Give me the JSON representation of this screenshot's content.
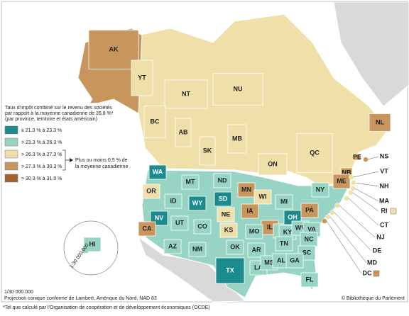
{
  "legend": {
    "title": [
      "Taux d'impôt combiné sur le revenu des sociétés",
      "par rapport à la moyenne canadienne de 26,8 %*",
      "(par province, territoire et états américain)"
    ],
    "items": [
      {
        "label": "≥ 21.0 % à 23.3 %",
        "color": "#1b8b8d"
      },
      {
        "label": "> 23.3 % à 26.3 %",
        "color": "#97d4c3"
      },
      {
        "label": "> 26.3 % à 27.3 %",
        "color": "#efdfa9"
      },
      {
        "label": "> 27.3 % à 30.3 %",
        "color": "#c8955d"
      },
      {
        "label": "> 30.3 % à 31.0 %",
        "color": "#a5602b"
      }
    ],
    "note": [
      "Plus ou moins 0,5 % de",
      "la moyenne canadienne"
    ]
  },
  "regions": [
    {
      "label": "AK",
      "color": "#c8955d"
    },
    {
      "label": "YT",
      "color": "#efdfa9"
    },
    {
      "label": "NT",
      "color": "#efdfa9"
    },
    {
      "label": "NU",
      "color": "#efdfa9"
    },
    {
      "label": "BC",
      "color": "#efdfa9"
    },
    {
      "label": "AB",
      "color": "#efdfa9"
    },
    {
      "label": "SK",
      "color": "#efdfa9"
    },
    {
      "label": "MB",
      "color": "#efdfa9"
    },
    {
      "label": "ON",
      "color": "#efdfa9"
    },
    {
      "label": "QC",
      "color": "#efdfa9"
    },
    {
      "label": "NL",
      "color": "#c8955d"
    },
    {
      "label": "PE",
      "color": "#c8955d"
    },
    {
      "label": "NB",
      "color": "#c8955d"
    },
    {
      "label": "WA",
      "color": "#1b8b8d"
    },
    {
      "label": "OR",
      "color": "#efdfa9"
    },
    {
      "label": "MT",
      "color": "#97d4c3"
    },
    {
      "label": "ND",
      "color": "#97d4c3"
    },
    {
      "label": "MN",
      "color": "#c8955d"
    },
    {
      "label": "WI",
      "color": "#efdfa9"
    },
    {
      "label": "MI",
      "color": "#97d4c3"
    },
    {
      "label": "NY",
      "color": "#97d4c3"
    },
    {
      "label": "ME",
      "color": "#c8955d"
    },
    {
      "label": "ID",
      "color": "#97d4c3"
    },
    {
      "label": "WY",
      "color": "#1b8b8d"
    },
    {
      "label": "SD",
      "color": "#1b8b8d"
    },
    {
      "label": "NV",
      "color": "#1b8b8d"
    },
    {
      "label": "UT",
      "color": "#97d4c3"
    },
    {
      "label": "CO",
      "color": "#97d4c3"
    },
    {
      "label": "NE",
      "color": "#efdfa9"
    },
    {
      "label": "IA",
      "color": "#c8955d"
    },
    {
      "label": "IL",
      "color": "#c8955d"
    },
    {
      "label": "IN",
      "color": "#97d4c3"
    },
    {
      "label": "OH",
      "color": "#1b8b8d"
    },
    {
      "label": "PA",
      "color": "#c8955d"
    },
    {
      "label": "CA",
      "color": "#c8955d"
    },
    {
      "label": "KS",
      "color": "#efdfa9"
    },
    {
      "label": "MO",
      "color": "#97d4c3"
    },
    {
      "label": "KY",
      "color": "#97d4c3"
    },
    {
      "label": "WV",
      "color": "#97d4c3"
    },
    {
      "label": "VA",
      "color": "#97d4c3"
    },
    {
      "label": "AZ",
      "color": "#97d4c3"
    },
    {
      "label": "NM",
      "color": "#97d4c3"
    },
    {
      "label": "OK",
      "color": "#97d4c3"
    },
    {
      "label": "AR",
      "color": "#97d4c3"
    },
    {
      "label": "TN",
      "color": "#97d4c3"
    },
    {
      "label": "NC",
      "color": "#97d4c3"
    },
    {
      "label": "SC",
      "color": "#97d4c3"
    },
    {
      "label": "TX",
      "color": "#1b8b8d"
    },
    {
      "label": "LA",
      "color": "#97d4c3"
    },
    {
      "label": "MS",
      "color": "#97d4c3"
    },
    {
      "label": "AL",
      "color": "#97d4c3"
    },
    {
      "label": "GA",
      "color": "#97d4c3"
    },
    {
      "label": "FL",
      "color": "#97d4c3"
    },
    {
      "label": "HI",
      "color": "#97d4c3"
    },
    {
      "label": "NS",
      "color": "#c8955d"
    },
    {
      "label": "VT",
      "color": "#efdfa9"
    },
    {
      "label": "NH",
      "color": "#efdfa9"
    },
    {
      "label": "MA",
      "color": "#efdfa9"
    },
    {
      "label": "RI",
      "color": "#efdfa9"
    },
    {
      "label": "CT",
      "color": "#efdfa9"
    },
    {
      "label": "NJ",
      "color": "#efdfa9"
    },
    {
      "label": "DE",
      "color": "#efdfa9"
    },
    {
      "label": "MD",
      "color": "#efdfa9"
    },
    {
      "label": "DC",
      "color": "#c8955d"
    }
  ],
  "inset_scale": "1:30 000 000",
  "scale": "1/30 000 000",
  "projection": "Projection conique conforme de Lambert, Amérique du Nord, NAD 83",
  "credit": "© Bibliothèque du Parlement",
  "footnote": "*Tel que calculé par l'Organisation de coopération et de développement économiques (OCDE)"
}
